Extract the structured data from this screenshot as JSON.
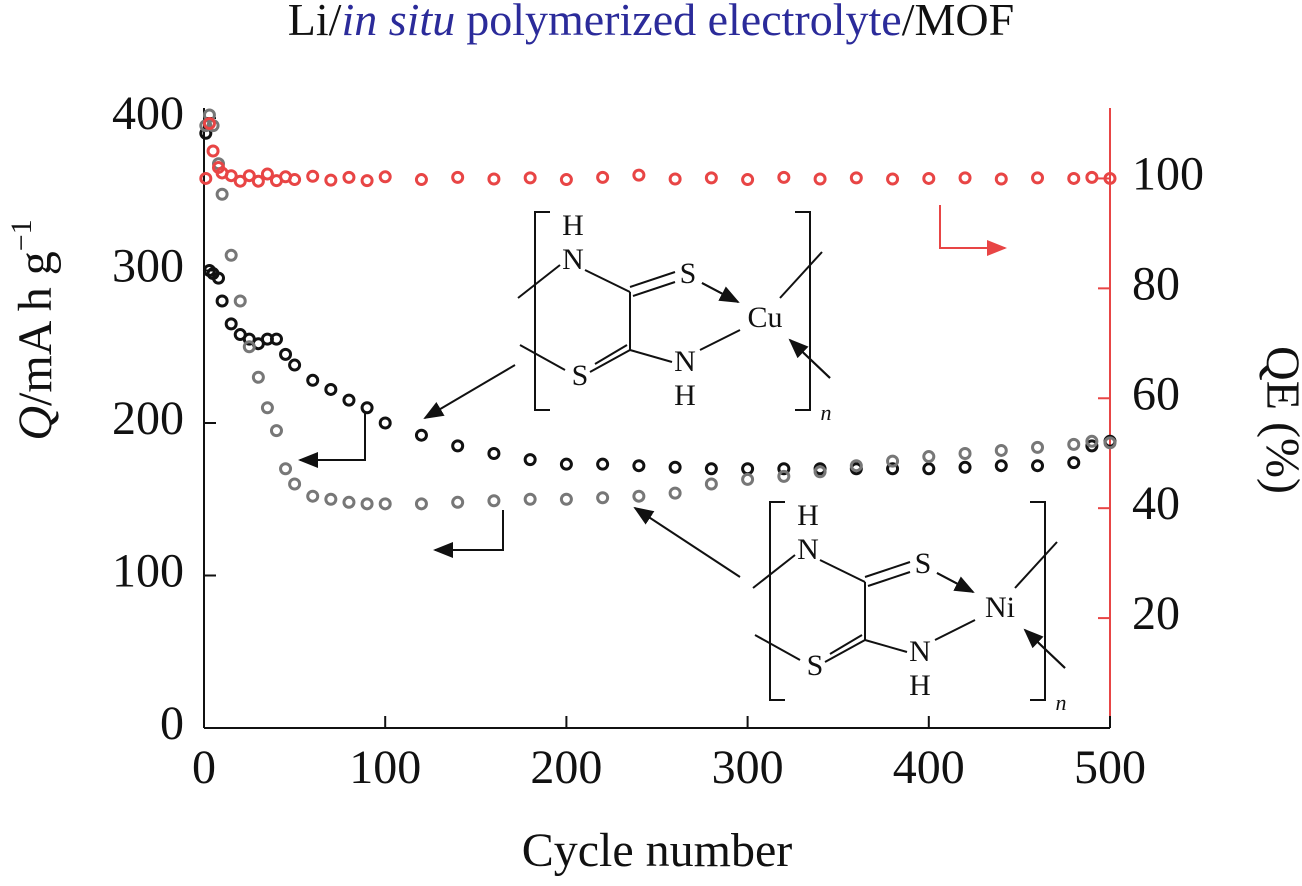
{
  "chart_data": {
    "type": "scatter",
    "title_parts": [
      "Li/",
      "in situ",
      "polymerized electrolyte",
      "/MOF"
    ],
    "x_label": "Cycle number",
    "y_label_parts": [
      "Q",
      "/mA h g",
      "−1"
    ],
    "y2_label": "QE (%)",
    "x": [
      1,
      3,
      5,
      8,
      10,
      15,
      20,
      25,
      30,
      35,
      40,
      45,
      50,
      60,
      70,
      80,
      90,
      100,
      120,
      140,
      160,
      180,
      200,
      220,
      240,
      260,
      280,
      300,
      320,
      340,
      360,
      380,
      400,
      420,
      440,
      460,
      480,
      490,
      500
    ],
    "series": [
      {
        "color": "#111111",
        "values": [
          390,
          300,
          298,
          295,
          280,
          265,
          258,
          255,
          252,
          255,
          255,
          245,
          238,
          228,
          222,
          215,
          210,
          200,
          192,
          185,
          180,
          176,
          173,
          173,
          172,
          171,
          170,
          170,
          170,
          170,
          170,
          170,
          170,
          171,
          172,
          172,
          174,
          185,
          188
        ]
      },
      {
        "color": "#777777",
        "values": [
          395,
          402,
          395,
          370,
          350,
          310,
          280,
          250,
          230,
          210,
          195,
          170,
          160,
          152,
          150,
          148,
          147,
          147,
          147,
          148,
          149,
          150,
          150,
          151,
          152,
          154,
          160,
          163,
          165,
          168,
          172,
          175,
          178,
          180,
          182,
          184,
          186,
          188,
          187
        ]
      },
      {
        "color": "#e84545",
        "axis": "y2",
        "values": [
          100,
          110,
          105,
          102,
          101,
          100.5,
          99.5,
          100.5,
          99.5,
          100.8,
          99.6,
          100.3,
          99.8,
          100.4,
          99.7,
          100.2,
          99.6,
          100.3,
          99.8,
          100.2,
          99.9,
          100.1,
          99.8,
          100.2,
          100.6,
          99.9,
          100.1,
          99.8,
          100.2,
          99.9,
          100.1,
          99.9,
          100,
          100.1,
          99.9,
          100.1,
          100,
          100.2,
          100
        ]
      }
    ],
    "structures": [
      {
        "atoms": [
          "H",
          "N",
          "S",
          "Cu",
          "S",
          "N",
          "H"
        ],
        "subscript": "n"
      },
      {
        "atoms": [
          "H",
          "N",
          "S",
          "Ni",
          "S",
          "N",
          "H"
        ],
        "subscript": "n"
      }
    ],
    "xlim": [
      0,
      500
    ],
    "xticks": [
      0,
      100,
      200,
      300,
      400,
      500
    ],
    "ylim": [
      0,
      400
    ],
    "yticks": [
      0,
      100,
      200,
      300,
      400
    ],
    "y2lim": [
      0,
      111
    ],
    "y2ticks": [
      20,
      40,
      60,
      80,
      100
    ],
    "title_color": "#2b2b9a",
    "y2_color": "#e84545"
  }
}
